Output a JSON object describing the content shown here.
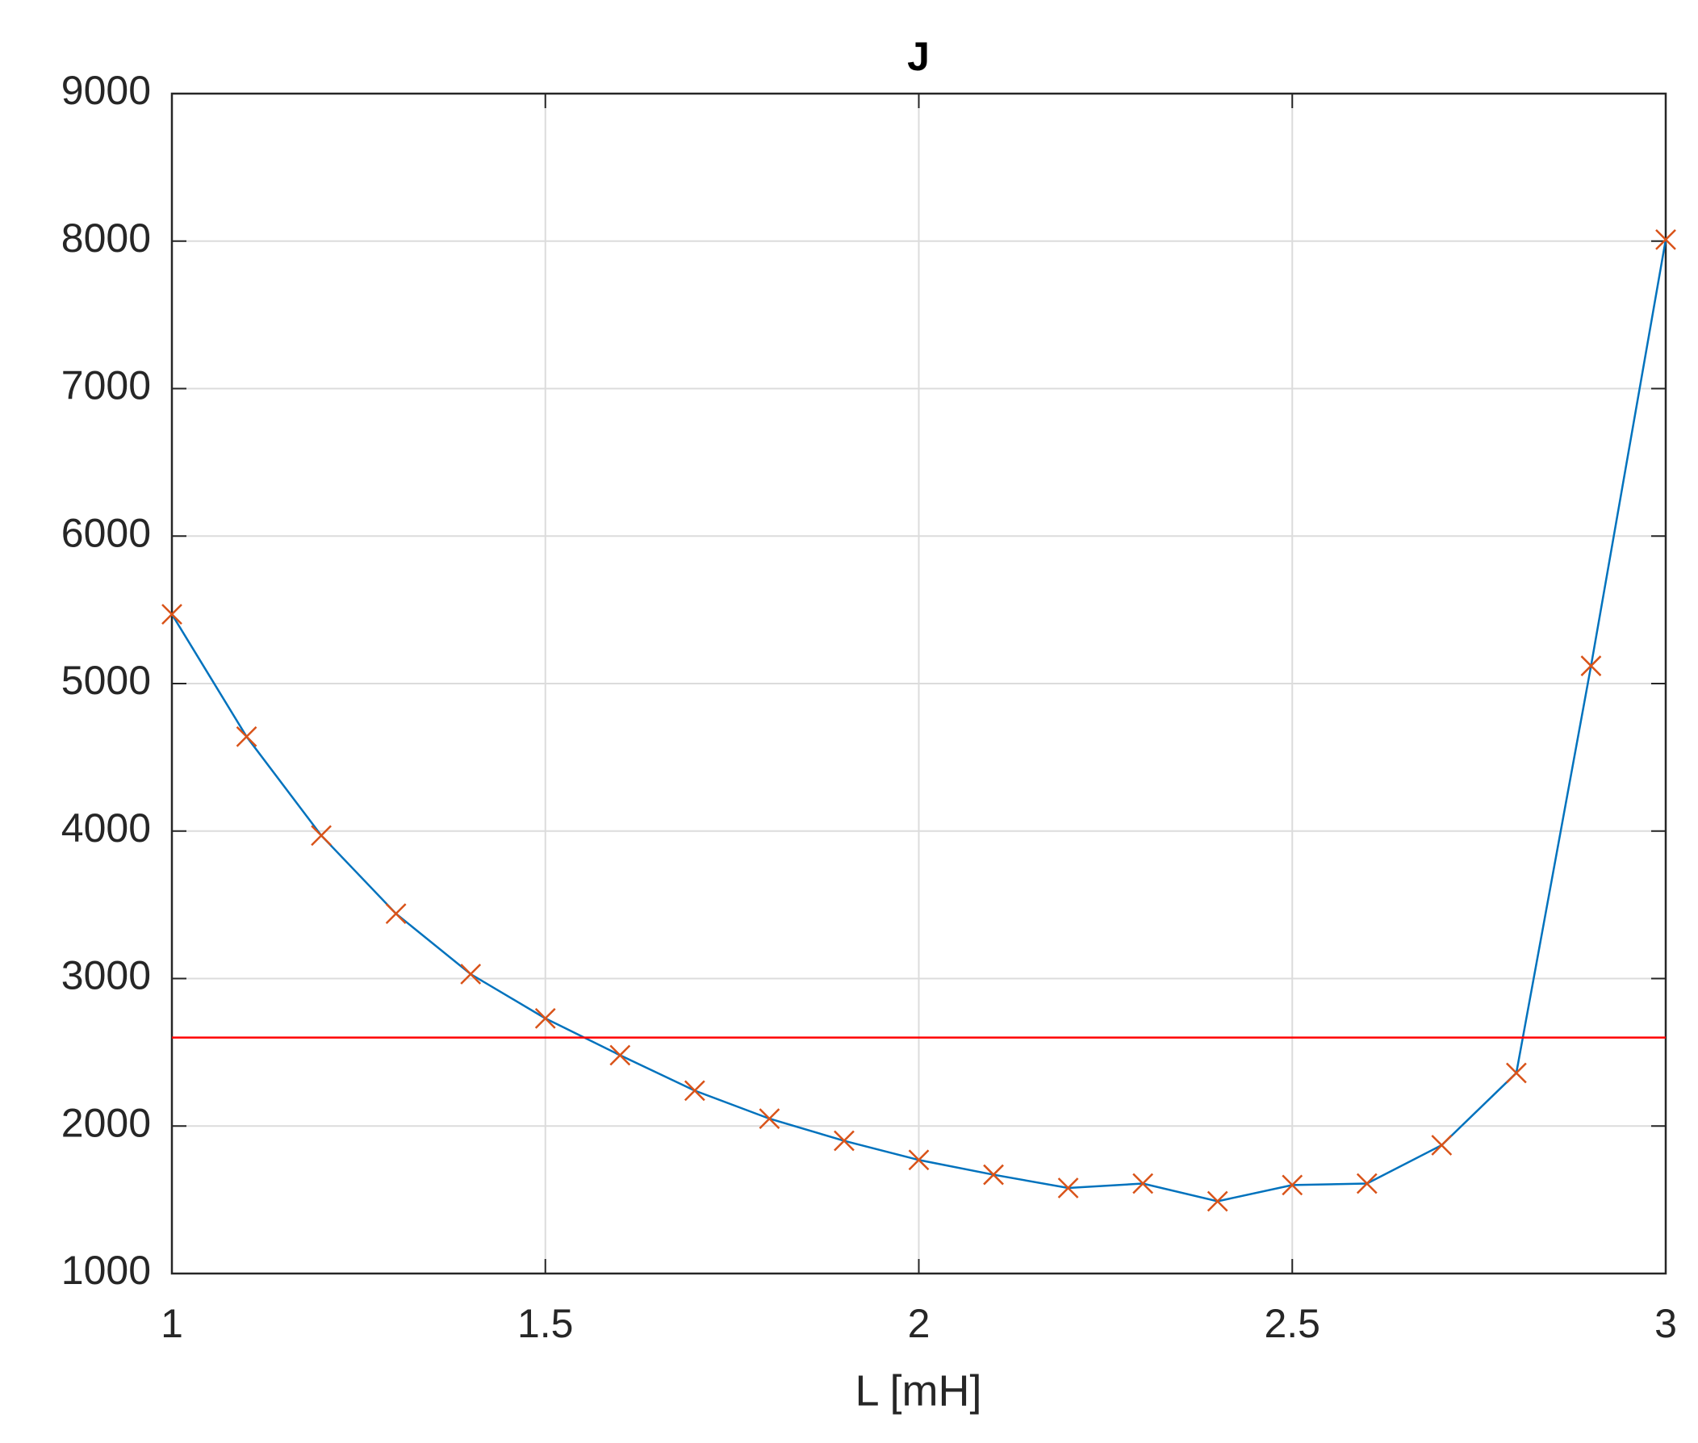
{
  "chart_data": {
    "type": "line",
    "title": "J",
    "x_label": "L [mH]",
    "x": [
      1.0,
      1.1,
      1.2,
      1.3,
      1.4,
      1.5,
      1.6,
      1.7,
      1.8,
      1.9,
      2.0,
      2.1,
      2.2,
      2.3,
      2.4,
      2.5,
      2.6,
      2.7,
      2.8,
      2.9,
      3.0
    ],
    "series": [
      {
        "color": "#0072bd",
        "marker": "x",
        "marker_color": "#d95319",
        "values": [
          5470,
          4640,
          3970,
          3440,
          3030,
          2730,
          2480,
          2240,
          2050,
          1900,
          1770,
          1670,
          1580,
          1610,
          1490,
          1600,
          1610,
          1870,
          2360,
          5120,
          8010
        ]
      }
    ],
    "hline": {
      "value": 2600,
      "color": "#ff0000"
    },
    "xlim": [
      1,
      3
    ],
    "xticks": [
      1,
      1.5,
      2,
      2.5,
      3
    ],
    "ylim": [
      1000,
      9000
    ],
    "yticks": [
      1000,
      2000,
      3000,
      4000,
      5000,
      6000,
      7000,
      8000,
      9000
    ],
    "grid": true
  }
}
